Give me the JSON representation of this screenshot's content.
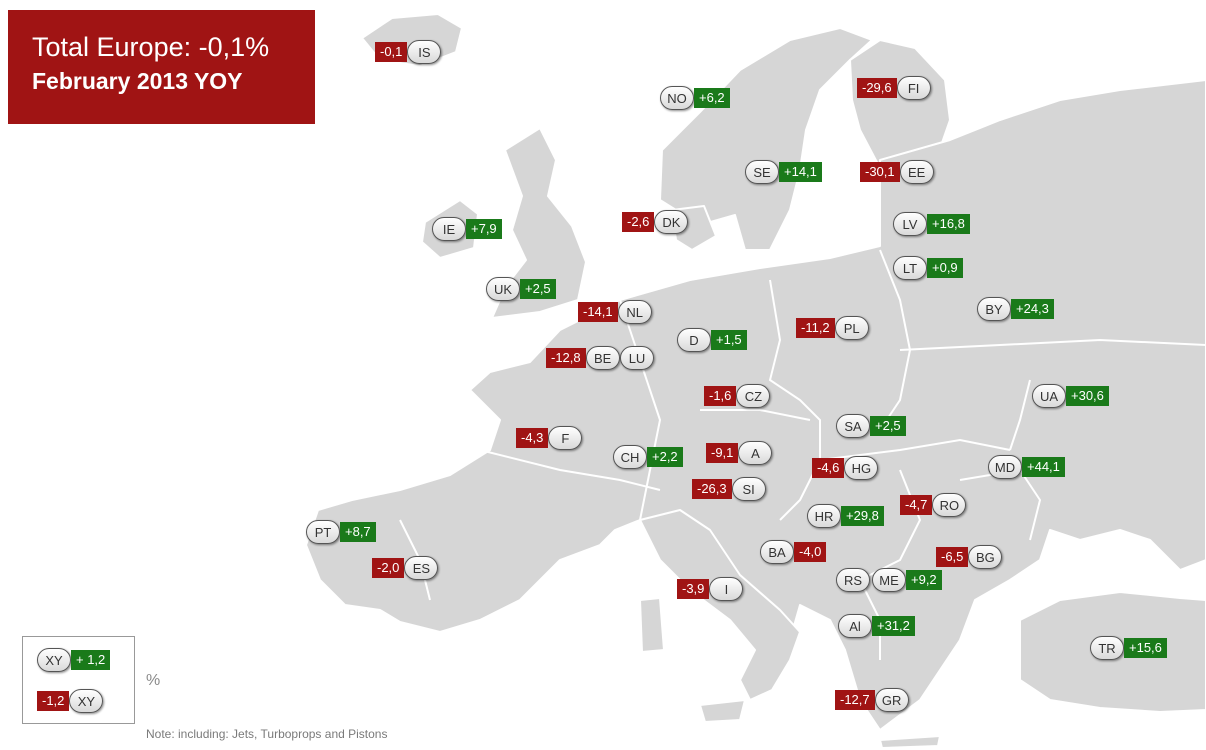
{
  "title": {
    "line1": "Total Europe: -0,1%",
    "line2": "February 2013 YOY"
  },
  "colors": {
    "positive": "#1a7a1a",
    "negative": "#a01414",
    "land": "#d6d6d6",
    "border": "#ffffff",
    "sea": "#ffffff"
  },
  "countries": [
    {
      "code": "IS",
      "value": "-0,1",
      "sign": "negative",
      "side": "left"
    },
    {
      "code": "NO",
      "value": "+6,2",
      "sign": "positive",
      "side": "right"
    },
    {
      "code": "FI",
      "value": "-29,6",
      "sign": "negative",
      "side": "left"
    },
    {
      "code": "SE",
      "value": "+14,1",
      "sign": "positive",
      "side": "right"
    },
    {
      "code": "EE",
      "value": "-30,1",
      "sign": "negative",
      "side": "left"
    },
    {
      "code": "IE",
      "value": "+7,9",
      "sign": "positive",
      "side": "right"
    },
    {
      "code": "DK",
      "value": "-2,6",
      "sign": "negative",
      "side": "left"
    },
    {
      "code": "LV",
      "value": "+16,8",
      "sign": "positive",
      "side": "right"
    },
    {
      "code": "LT",
      "value": "+0,9",
      "sign": "positive",
      "side": "right"
    },
    {
      "code": "UK",
      "value": "+2,5",
      "sign": "positive",
      "side": "right"
    },
    {
      "code": "BY",
      "value": "+24,3",
      "sign": "positive",
      "side": "right"
    },
    {
      "code": "NL",
      "value": "-14,1",
      "sign": "negative",
      "side": "left"
    },
    {
      "code": "PL",
      "value": "-11,2",
      "sign": "negative",
      "side": "left"
    },
    {
      "code": "D",
      "value": "+1,5",
      "sign": "positive",
      "side": "right"
    },
    {
      "code": "BE",
      "value": "-12,8",
      "sign": "negative",
      "side": "left"
    },
    {
      "code": "LU",
      "value": "",
      "sign": "none",
      "side": "none"
    },
    {
      "code": "CZ",
      "value": "-1,6",
      "sign": "negative",
      "side": "left"
    },
    {
      "code": "UA",
      "value": "+30,6",
      "sign": "positive",
      "side": "right"
    },
    {
      "code": "F",
      "value": "-4,3",
      "sign": "negative",
      "side": "left"
    },
    {
      "code": "SA",
      "value": "+2,5",
      "sign": "positive",
      "side": "right"
    },
    {
      "code": "CH",
      "value": "+2,2",
      "sign": "positive",
      "side": "right"
    },
    {
      "code": "A",
      "value": "-9,1",
      "sign": "negative",
      "side": "left"
    },
    {
      "code": "HG",
      "value": "-4,6",
      "sign": "negative",
      "side": "left"
    },
    {
      "code": "MD",
      "value": "+44,1",
      "sign": "positive",
      "side": "right"
    },
    {
      "code": "SI",
      "value": "-26,3",
      "sign": "negative",
      "side": "left"
    },
    {
      "code": "RO",
      "value": "-4,7",
      "sign": "negative",
      "side": "left"
    },
    {
      "code": "HR",
      "value": "+29,8",
      "sign": "positive",
      "side": "right"
    },
    {
      "code": "PT",
      "value": "+8,7",
      "sign": "positive",
      "side": "right"
    },
    {
      "code": "BA",
      "value": "-4,0",
      "sign": "negative",
      "side": "right"
    },
    {
      "code": "BG",
      "value": "-6,5",
      "sign": "negative",
      "side": "left"
    },
    {
      "code": "ES",
      "value": "-2,0",
      "sign": "negative",
      "side": "left"
    },
    {
      "code": "RS",
      "value": "",
      "sign": "none",
      "side": "none"
    },
    {
      "code": "ME",
      "value": "+9,2",
      "sign": "positive",
      "side": "right"
    },
    {
      "code": "I",
      "value": "-3,9",
      "sign": "negative",
      "side": "left"
    },
    {
      "code": "Al",
      "value": "+31,2",
      "sign": "positive",
      "side": "right"
    },
    {
      "code": "TR",
      "value": "+15,6",
      "sign": "positive",
      "side": "right"
    },
    {
      "code": "GR",
      "value": "-12,7",
      "sign": "negative",
      "side": "left"
    }
  ],
  "legend": {
    "positive": {
      "code": "XY",
      "value": "+ 1,2"
    },
    "negative": {
      "code": "XY",
      "value": "-1,2"
    },
    "unit": "%"
  },
  "note": "Note: including: Jets, Turboprops  and Pistons"
}
